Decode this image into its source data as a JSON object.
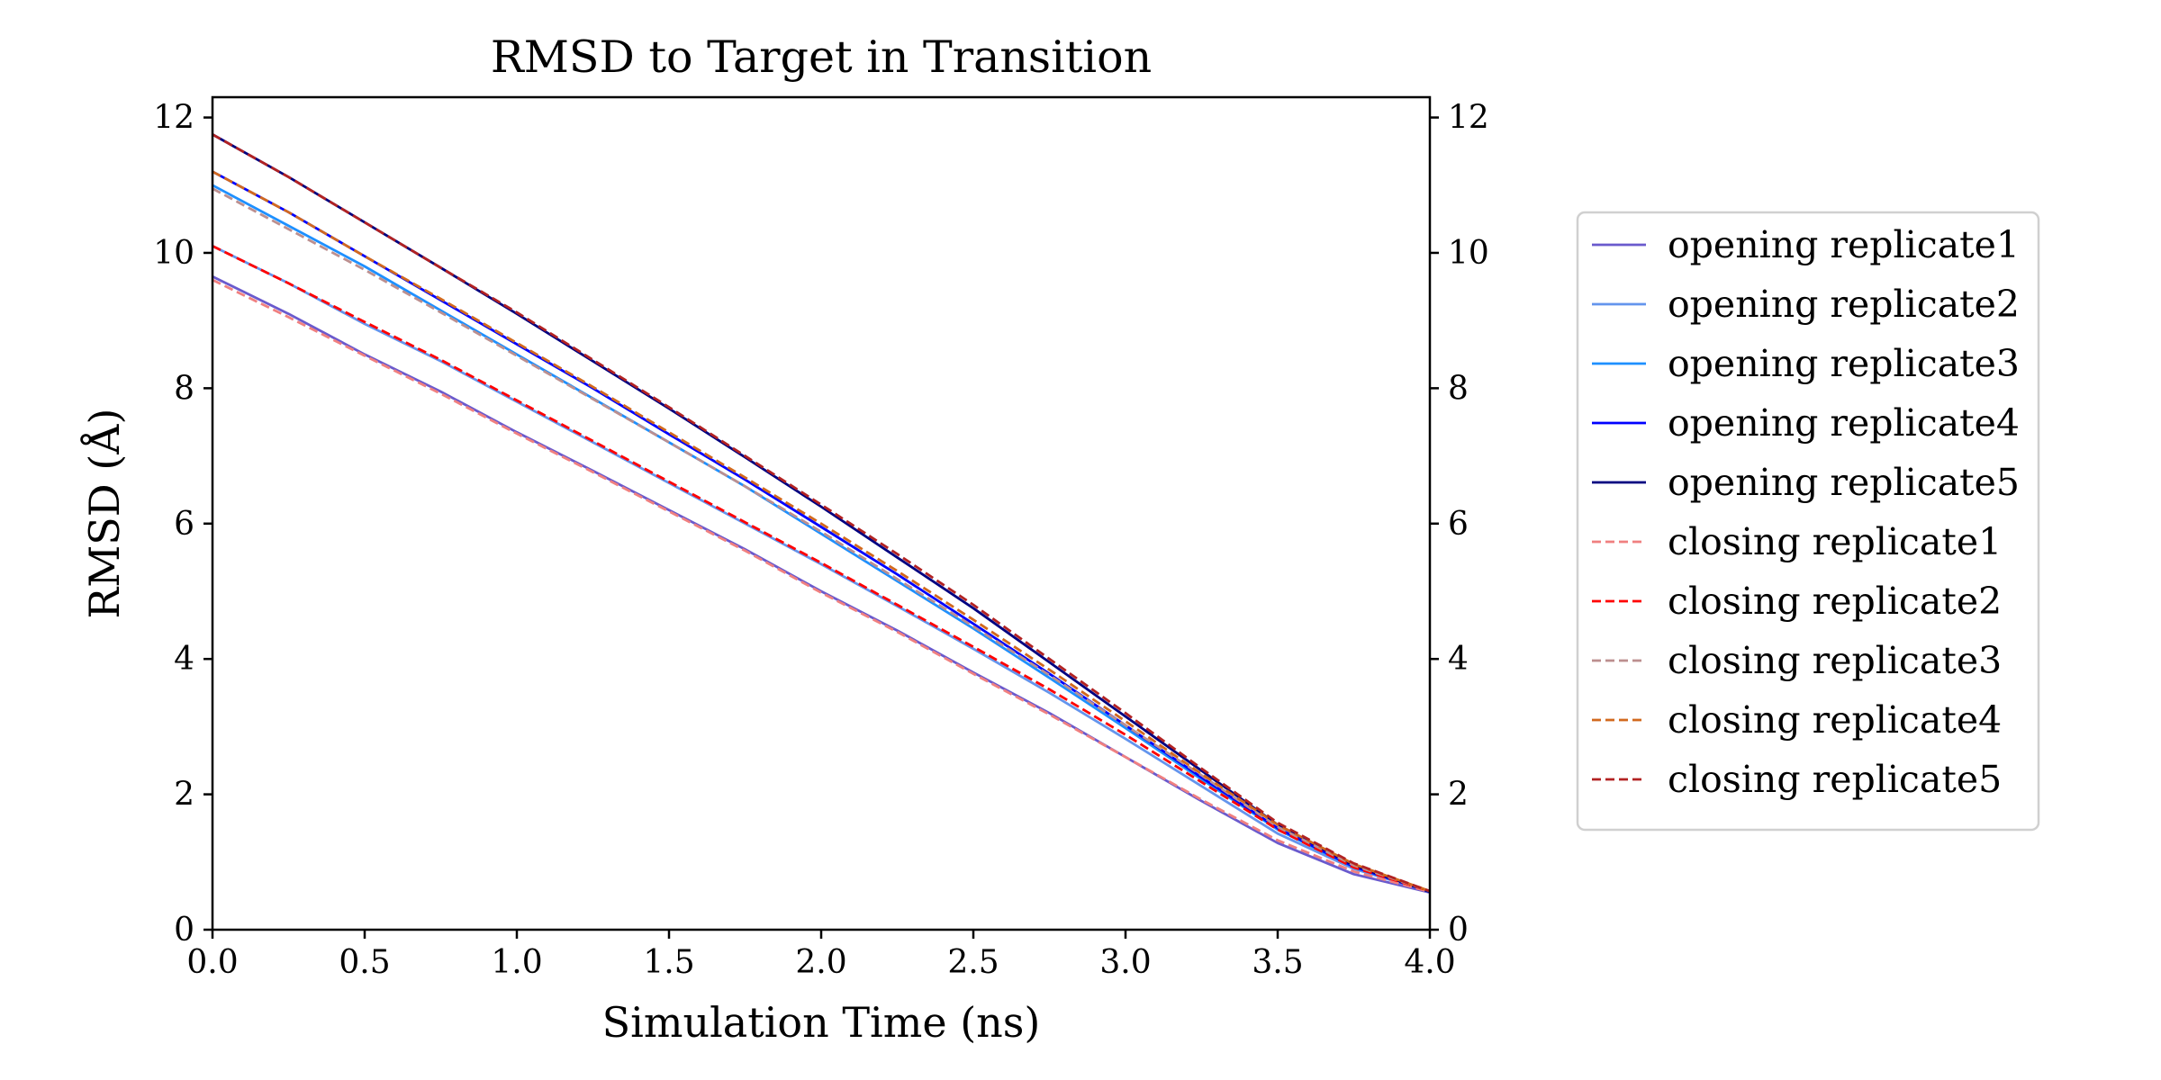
{
  "chart_data": {
    "type": "line",
    "title": "RMSD to Target in Transition",
    "xlabel": "Simulation Time (ns)",
    "ylabel": "RMSD (Å)",
    "xlim": [
      0,
      4
    ],
    "ylim": [
      0,
      12.3
    ],
    "x_ticks": [
      "0.0",
      "0.5",
      "1.0",
      "1.5",
      "2.0",
      "2.5",
      "3.0",
      "3.5",
      "4.0"
    ],
    "y_ticks": [
      "0",
      "2",
      "4",
      "6",
      "8",
      "10",
      "12"
    ],
    "right_axis_ticks": true,
    "grid": false,
    "legend_position": "outside-right",
    "x": [
      0,
      0.25,
      0.5,
      0.75,
      1.0,
      1.25,
      1.5,
      1.75,
      2.0,
      2.25,
      2.5,
      2.75,
      3.0,
      3.25,
      3.5,
      3.75,
      4.0
    ],
    "series": [
      {
        "name": "opening replicate1",
        "style": "solid",
        "color": "#6a5acd",
        "values": [
          9.65,
          9.1,
          8.5,
          7.95,
          7.35,
          6.78,
          6.2,
          5.62,
          5.0,
          4.42,
          3.8,
          3.2,
          2.55,
          1.9,
          1.28,
          0.82,
          0.55
        ]
      },
      {
        "name": "opening replicate2",
        "style": "solid",
        "color": "#6495ed",
        "values": [
          10.1,
          9.55,
          8.95,
          8.4,
          7.8,
          7.2,
          6.6,
          6.0,
          5.4,
          4.78,
          4.15,
          3.5,
          2.82,
          2.12,
          1.42,
          0.9,
          0.56
        ]
      },
      {
        "name": "opening replicate3",
        "style": "solid",
        "color": "#1e90ff",
        "values": [
          11.0,
          10.4,
          9.8,
          9.15,
          8.5,
          7.85,
          7.2,
          6.55,
          5.85,
          5.15,
          4.45,
          3.72,
          2.98,
          2.22,
          1.48,
          0.92,
          0.56
        ]
      },
      {
        "name": "opening replicate4",
        "style": "solid",
        "color": "#0000ff",
        "values": [
          11.2,
          10.6,
          9.95,
          9.3,
          8.65,
          8.0,
          7.32,
          6.65,
          5.95,
          5.25,
          4.52,
          3.78,
          3.02,
          2.25,
          1.5,
          0.93,
          0.56
        ]
      },
      {
        "name": "opening replicate5",
        "style": "solid",
        "color": "#000080",
        "values": [
          11.75,
          11.12,
          10.45,
          9.78,
          9.1,
          8.4,
          7.7,
          6.98,
          6.25,
          5.5,
          4.75,
          3.95,
          3.15,
          2.35,
          1.55,
          0.95,
          0.56
        ]
      },
      {
        "name": "closing replicate1",
        "style": "dashed",
        "color": "#f08080",
        "values": [
          9.6,
          9.05,
          8.48,
          7.92,
          7.33,
          6.76,
          6.18,
          5.6,
          4.98,
          4.4,
          3.78,
          3.18,
          2.55,
          1.92,
          1.32,
          0.86,
          0.56
        ]
      },
      {
        "name": "closing replicate2",
        "style": "dashed",
        "color": "#ff0000",
        "values": [
          10.1,
          9.55,
          8.98,
          8.42,
          7.82,
          7.22,
          6.62,
          6.02,
          5.42,
          4.8,
          4.18,
          3.55,
          2.88,
          2.18,
          1.48,
          0.92,
          0.57
        ]
      },
      {
        "name": "closing replicate3",
        "style": "dashed",
        "color": "#bc8f8f",
        "values": [
          10.95,
          10.35,
          9.75,
          9.12,
          8.48,
          7.84,
          7.2,
          6.55,
          5.88,
          5.18,
          4.48,
          3.76,
          3.02,
          2.28,
          1.52,
          0.95,
          0.57
        ]
      },
      {
        "name": "closing replicate4",
        "style": "dashed",
        "color": "#d2691e",
        "values": [
          11.2,
          10.6,
          9.95,
          9.32,
          8.67,
          8.02,
          7.35,
          6.68,
          6.0,
          5.3,
          4.58,
          3.84,
          3.08,
          2.3,
          1.55,
          0.97,
          0.57
        ]
      },
      {
        "name": "closing replicate5",
        "style": "dashed",
        "color": "#b22222",
        "values": [
          11.75,
          11.12,
          10.45,
          9.78,
          9.12,
          8.42,
          7.72,
          7.0,
          6.28,
          5.55,
          4.8,
          4.0,
          3.2,
          2.38,
          1.58,
          0.98,
          0.57
        ]
      }
    ]
  }
}
